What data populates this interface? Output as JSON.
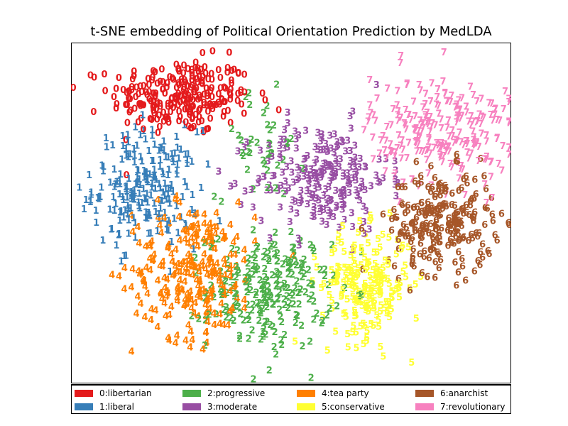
{
  "chart_data": {
    "type": "scatter",
    "title": "t-SNE embedding of Political Orientation Prediction by MedLDA",
    "xlabel": "",
    "ylabel": "",
    "xlim": [
      0,
      1
    ],
    "ylim": [
      0,
      1
    ],
    "grid": false,
    "legend": "bottom",
    "marker": "digit-label",
    "series": [
      {
        "label": "0",
        "name": "0:libertarian",
        "color": "#e41a1c",
        "clusters": [
          {
            "cx": 0.25,
            "cy": 0.84,
            "sx": 0.08,
            "sy": 0.055,
            "n": 260
          }
        ]
      },
      {
        "label": "1",
        "name": "1:liberal",
        "color": "#377eb8",
        "clusters": [
          {
            "cx": 0.17,
            "cy": 0.57,
            "sx": 0.06,
            "sy": 0.085,
            "n": 230
          }
        ]
      },
      {
        "label": "2",
        "name": "2:progressive",
        "color": "#4daf4a",
        "clusters": [
          {
            "cx": 0.45,
            "cy": 0.27,
            "sx": 0.07,
            "sy": 0.085,
            "n": 230
          },
          {
            "cx": 0.43,
            "cy": 0.7,
            "sx": 0.05,
            "sy": 0.08,
            "n": 40
          }
        ]
      },
      {
        "label": "3",
        "name": "3:moderate",
        "color": "#984ea3",
        "clusters": [
          {
            "cx": 0.57,
            "cy": 0.6,
            "sx": 0.075,
            "sy": 0.08,
            "n": 240
          }
        ]
      },
      {
        "label": "4",
        "name": "4:tea party",
        "color": "#ff7f00",
        "clusters": [
          {
            "cx": 0.28,
            "cy": 0.33,
            "sx": 0.07,
            "sy": 0.1,
            "n": 260
          }
        ]
      },
      {
        "label": "5",
        "name": "5:conservative",
        "color": "#ffff33",
        "clusters": [
          {
            "cx": 0.67,
            "cy": 0.29,
            "sx": 0.05,
            "sy": 0.08,
            "n": 220
          }
        ]
      },
      {
        "label": "6",
        "name": "6:anarchist",
        "color": "#a65628",
        "clusters": [
          {
            "cx": 0.84,
            "cy": 0.47,
            "sx": 0.06,
            "sy": 0.075,
            "n": 240
          }
        ]
      },
      {
        "label": "7",
        "name": "7:revolutionary",
        "color": "#f781bf",
        "clusters": [
          {
            "cx": 0.84,
            "cy": 0.74,
            "sx": 0.08,
            "sy": 0.08,
            "n": 240
          }
        ]
      }
    ]
  }
}
